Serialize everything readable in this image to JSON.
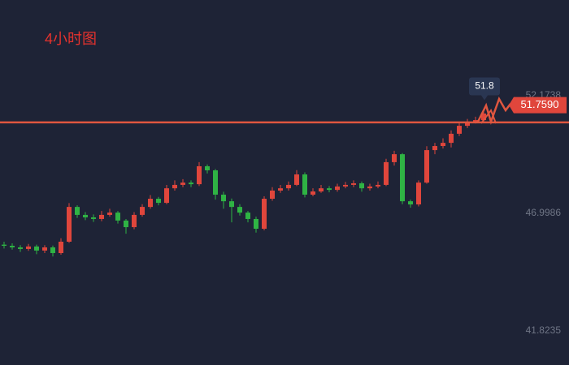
{
  "chart_data": {
    "type": "candlestick",
    "title": "4小时图",
    "open": [
      45.62,
      45.57,
      45.5,
      45.43,
      45.54,
      45.36,
      45.5,
      45.25,
      45.75,
      47.28,
      46.93,
      46.82,
      46.75,
      46.93,
      47.03,
      46.68,
      46.39,
      46.93,
      47.28,
      47.64,
      47.46,
      48.1,
      48.25,
      48.35,
      48.28,
      49.07,
      48.89,
      47.82,
      47.53,
      47.28,
      47.03,
      46.75,
      46.32,
      47.64,
      48.0,
      48.1,
      48.25,
      48.71,
      47.82,
      47.96,
      48.1,
      48.03,
      48.18,
      48.25,
      48.32,
      48.1,
      48.18,
      48.25,
      49.25,
      49.6,
      47.53,
      47.39,
      48.35,
      49.78,
      49.96,
      50.1,
      50.5,
      50.85,
      51.03,
      51.1
    ],
    "high": [
      45.75,
      45.68,
      45.6,
      45.65,
      45.62,
      45.6,
      45.58,
      45.9,
      47.45,
      47.35,
      47.05,
      46.95,
      47.1,
      47.2,
      47.1,
      46.75,
      47.05,
      47.4,
      47.8,
      47.72,
      48.25,
      48.45,
      48.5,
      48.45,
      49.25,
      49.15,
      48.95,
      47.95,
      47.65,
      47.4,
      47.1,
      46.85,
      47.75,
      48.15,
      48.25,
      48.4,
      48.9,
      48.8,
      48.1,
      48.25,
      48.2,
      48.3,
      48.38,
      48.45,
      48.4,
      48.3,
      48.4,
      49.4,
      49.75,
      49.65,
      47.6,
      48.45,
      49.95,
      50.1,
      50.3,
      50.65,
      51.0,
      51.15,
      51.25,
      51.5
    ],
    "low": [
      45.45,
      45.4,
      45.3,
      45.35,
      45.2,
      45.25,
      45.1,
      45.18,
      45.7,
      46.8,
      46.7,
      46.62,
      46.65,
      46.85,
      46.55,
      46.1,
      46.3,
      46.85,
      47.2,
      47.35,
      47.4,
      48.0,
      48.15,
      48.15,
      48.2,
      48.75,
      47.6,
      47.2,
      46.6,
      46.9,
      46.6,
      46.15,
      46.25,
      47.55,
      47.9,
      48.0,
      48.2,
      47.7,
      47.75,
      47.9,
      47.92,
      47.95,
      48.1,
      48.15,
      47.95,
      48.0,
      48.1,
      48.2,
      49.1,
      47.4,
      47.25,
      47.3,
      48.3,
      49.6,
      49.85,
      49.9,
      50.4,
      50.75,
      50.95,
      51.0
    ],
    "close": [
      45.57,
      45.5,
      45.43,
      45.54,
      45.36,
      45.5,
      45.25,
      45.75,
      47.28,
      46.93,
      46.82,
      46.75,
      46.93,
      47.03,
      46.68,
      46.39,
      46.93,
      47.28,
      47.64,
      47.46,
      48.1,
      48.25,
      48.35,
      48.28,
      49.07,
      48.89,
      47.82,
      47.53,
      47.28,
      47.03,
      46.75,
      46.32,
      47.64,
      48.0,
      48.1,
      48.25,
      48.71,
      47.82,
      47.96,
      48.1,
      48.03,
      48.18,
      48.25,
      48.32,
      48.1,
      48.18,
      48.25,
      49.25,
      49.6,
      47.53,
      47.39,
      48.35,
      49.78,
      49.96,
      50.1,
      50.5,
      50.85,
      51.03,
      51.1,
      51.39
    ],
    "up_color": "#e0463c",
    "down_color": "#2fb344",
    "ylim": [
      40.3245,
      56.3853
    ],
    "yticks": [
      41.8235,
      46.9986,
      52.1738
    ],
    "level": 51.0,
    "level_color": "#e0563f",
    "current_price": {
      "value": 51.759,
      "label": "51.7590"
    },
    "annotation": 51.8
  }
}
